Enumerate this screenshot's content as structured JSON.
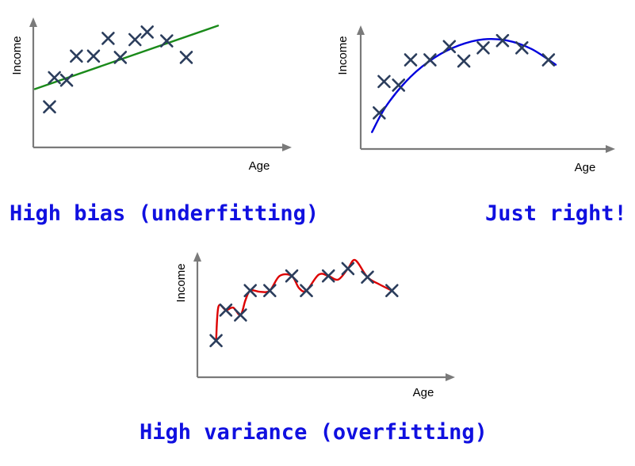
{
  "chart_data": [
    {
      "type": "scatter",
      "title": "High bias (underfitting)",
      "xlabel": "Age",
      "ylabel": "Income",
      "xlim": [
        0,
        10
      ],
      "ylim": [
        0,
        10
      ],
      "grid": false,
      "points": [
        [
          0.6,
          3.2
        ],
        [
          0.8,
          5.5
        ],
        [
          1.3,
          5.3
        ],
        [
          1.7,
          7.2
        ],
        [
          2.4,
          7.2
        ],
        [
          3.0,
          8.6
        ],
        [
          3.5,
          7.1
        ],
        [
          4.1,
          8.5
        ],
        [
          4.6,
          9.1
        ],
        [
          5.4,
          8.4
        ],
        [
          6.2,
          7.1
        ]
      ],
      "fit": {
        "kind": "line",
        "color": "#1a8a1a",
        "x": [
          0,
          7.5
        ],
        "y": [
          4.6,
          9.6
        ]
      }
    },
    {
      "type": "scatter",
      "title": "Just right!",
      "xlabel": "Age",
      "ylabel": "Income",
      "xlim": [
        0,
        10
      ],
      "ylim": [
        0,
        10
      ],
      "grid": false,
      "points": [
        [
          0.7,
          3.0
        ],
        [
          0.9,
          5.6
        ],
        [
          1.5,
          5.3
        ],
        [
          2.0,
          7.4
        ],
        [
          2.8,
          7.4
        ],
        [
          3.6,
          8.5
        ],
        [
          4.2,
          7.3
        ],
        [
          5.0,
          8.4
        ],
        [
          5.8,
          9.0
        ],
        [
          6.6,
          8.4
        ],
        [
          7.7,
          7.4
        ]
      ],
      "fit": {
        "kind": "curve",
        "color": "#0000dd",
        "x": [
          0.4,
          1.0,
          2.0,
          3.0,
          4.0,
          5.0,
          6.0,
          7.0,
          8.0
        ],
        "y": [
          1.4,
          3.6,
          6.0,
          7.6,
          8.6,
          9.1,
          9.0,
          8.3,
          7.0
        ]
      }
    },
    {
      "type": "scatter",
      "title": "High variance (overfitting)",
      "xlabel": "Age",
      "ylabel": "Income",
      "xlim": [
        0,
        10
      ],
      "ylim": [
        0,
        10
      ],
      "grid": false,
      "points": [
        [
          0.7,
          3.0
        ],
        [
          1.1,
          5.5
        ],
        [
          1.7,
          5.1
        ],
        [
          2.1,
          7.1
        ],
        [
          2.9,
          7.1
        ],
        [
          3.8,
          8.3
        ],
        [
          4.4,
          7.1
        ],
        [
          5.3,
          8.3
        ],
        [
          6.1,
          8.9
        ],
        [
          6.9,
          8.2
        ],
        [
          7.9,
          7.1
        ]
      ],
      "fit": {
        "kind": "curve",
        "color": "#dd0000",
        "x": [
          0.7,
          0.8,
          1.1,
          1.4,
          1.7,
          1.9,
          2.1,
          2.5,
          2.9,
          3.3,
          3.8,
          4.1,
          4.4,
          4.9,
          5.3,
          5.7,
          6.1,
          6.4,
          6.9,
          7.4,
          7.9
        ],
        "y": [
          3.0,
          5.8,
          5.5,
          5.7,
          5.1,
          6.3,
          7.1,
          7.0,
          7.1,
          8.3,
          8.3,
          7.3,
          7.1,
          8.4,
          8.3,
          8.0,
          8.9,
          9.6,
          8.2,
          7.6,
          7.1
        ]
      }
    }
  ]
}
